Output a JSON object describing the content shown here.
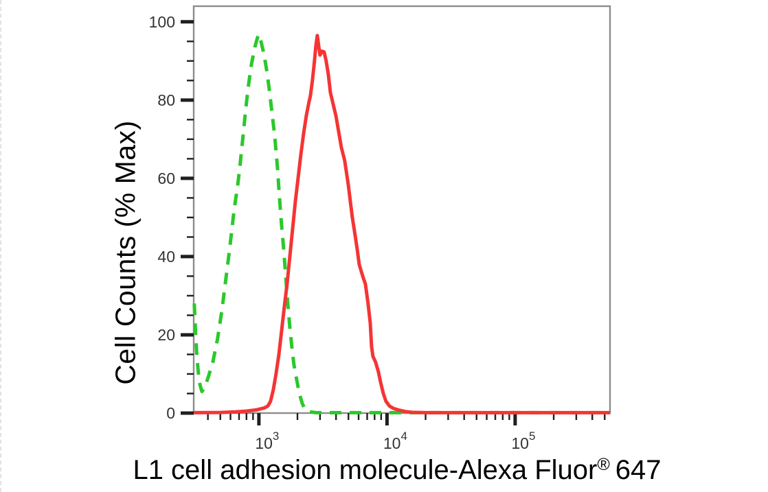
{
  "figure": {
    "background": "#ffffff",
    "left_edge_line_color": "#e2e2e2"
  },
  "chart_data": {
    "type": "line",
    "chart_kind": "flow-cytometry-histogram-overlay",
    "title": "",
    "xlabel": "L1 cell adhesion molecule-Alexa Fluor® 647",
    "xlabel_main": "L1 cell adhesion molecule-Alexa Fluor",
    "xlabel_sup": "®",
    "xlabel_tail": "647",
    "ylabel": "Cell Counts (% Max)",
    "x_scale": "log",
    "x_range": [
      310,
      550000
    ],
    "y_range": [
      0,
      104
    ],
    "y_major_ticks": [
      0,
      20,
      40,
      60,
      80,
      100
    ],
    "y_minor_step": 5,
    "x_major_ticks": [
      1000,
      10000,
      100000
    ],
    "x_tick_label_base": "10",
    "x_tick_label_exponents": [
      3,
      4,
      5
    ],
    "grid": false,
    "legend": "none",
    "frame_color": "#8c8c8c",
    "tick_color": "#1f1f1f",
    "tick_label_color": "#333333",
    "series": [
      {
        "id": "green-dashed-curve",
        "name": "green dashed histogram",
        "line_style": "dashed",
        "color": "#2bc82b",
        "peak": {
          "x": 1000,
          "y": 96.8
        },
        "points": [
          [
            313,
            28
          ],
          [
            321,
            20
          ],
          [
            329,
            14
          ],
          [
            342,
            8
          ],
          [
            359,
            5.5
          ],
          [
            377,
            6.5
          ],
          [
            401,
            9
          ],
          [
            437,
            13
          ],
          [
            476,
            19
          ],
          [
            513,
            26
          ],
          [
            546,
            33
          ],
          [
            581,
            40
          ],
          [
            611,
            46
          ],
          [
            641,
            52
          ],
          [
            682,
            58
          ],
          [
            716,
            64
          ],
          [
            753,
            71
          ],
          [
            791,
            78
          ],
          [
            831,
            84
          ],
          [
            873,
            89
          ],
          [
            929,
            93.5
          ],
          [
            976,
            96
          ],
          [
            1000,
            96.8
          ],
          [
            1038,
            95
          ],
          [
            1090,
            92
          ],
          [
            1146,
            88
          ],
          [
            1203,
            83
          ],
          [
            1264,
            77
          ],
          [
            1328,
            71
          ],
          [
            1395,
            63
          ],
          [
            1449,
            55
          ],
          [
            1503,
            48
          ],
          [
            1560,
            42
          ],
          [
            1619,
            35
          ],
          [
            1680,
            28
          ],
          [
            1743,
            22
          ],
          [
            1808,
            17
          ],
          [
            1876,
            12.5
          ],
          [
            1973,
            8.5
          ],
          [
            2071,
            5
          ],
          [
            2177,
            2.5
          ],
          [
            2288,
            1
          ],
          [
            2404,
            0.4
          ],
          [
            2786,
            0.1
          ],
          [
            4000,
            0.1
          ],
          [
            8000,
            0.1
          ],
          [
            20000,
            0.1
          ],
          [
            60000,
            0.1
          ],
          [
            200000,
            0.1
          ],
          [
            550000,
            0.1
          ]
        ]
      },
      {
        "id": "red-solid-curve",
        "name": "red solid histogram",
        "line_style": "solid",
        "color": "#f53434",
        "peak": {
          "x": 2858,
          "y": 96.5
        },
        "points": [
          [
            311,
            0.1
          ],
          [
            500,
            0.15
          ],
          [
            650,
            0.3
          ],
          [
            800,
            0.5
          ],
          [
            950,
            0.8
          ],
          [
            1100,
            1.3
          ],
          [
            1174,
            1.8
          ],
          [
            1233,
            3
          ],
          [
            1296,
            6
          ],
          [
            1361,
            10
          ],
          [
            1432,
            15
          ],
          [
            1503,
            21
          ],
          [
            1578,
            27
          ],
          [
            1660,
            33
          ],
          [
            1743,
            40
          ],
          [
            1832,
            47
          ],
          [
            1924,
            54
          ],
          [
            2023,
            60
          ],
          [
            2123,
            66
          ],
          [
            2234,
            71.5
          ],
          [
            2344,
            76
          ],
          [
            2460,
            79.5
          ],
          [
            2523,
            81
          ],
          [
            2618,
            85
          ],
          [
            2716,
            90
          ],
          [
            2786,
            94
          ],
          [
            2858,
            96.5
          ],
          [
            2924,
            94
          ],
          [
            2999,
            91.5
          ],
          [
            3112,
            92.5
          ],
          [
            3228,
            92.3
          ],
          [
            3350,
            90
          ],
          [
            3483,
            86.5
          ],
          [
            3614,
            82
          ],
          [
            3793,
            79
          ],
          [
            3990,
            76
          ],
          [
            4295,
            70
          ],
          [
            4397,
            68
          ],
          [
            4677,
            64.5
          ],
          [
            4977,
            58.5
          ],
          [
            5359,
            50
          ],
          [
            5636,
            45.5
          ],
          [
            5848,
            42
          ],
          [
            6067,
            38
          ],
          [
            6457,
            35
          ],
          [
            6776,
            33
          ],
          [
            7112,
            28
          ],
          [
            7396,
            23
          ],
          [
            7572,
            17
          ],
          [
            7762,
            14.5
          ],
          [
            8150,
            13
          ],
          [
            8570,
            10.5
          ],
          [
            8892,
            8
          ],
          [
            9354,
            5
          ],
          [
            9817,
            3
          ],
          [
            10447,
            1.8
          ],
          [
            11246,
            1.2
          ],
          [
            12254,
            0.8
          ],
          [
            13868,
            0.4
          ],
          [
            15704,
            0.2
          ],
          [
            20000,
            0.1
          ],
          [
            50000,
            0.1
          ],
          [
            150000,
            0.1
          ],
          [
            550000,
            0.1
          ]
        ]
      }
    ]
  }
}
